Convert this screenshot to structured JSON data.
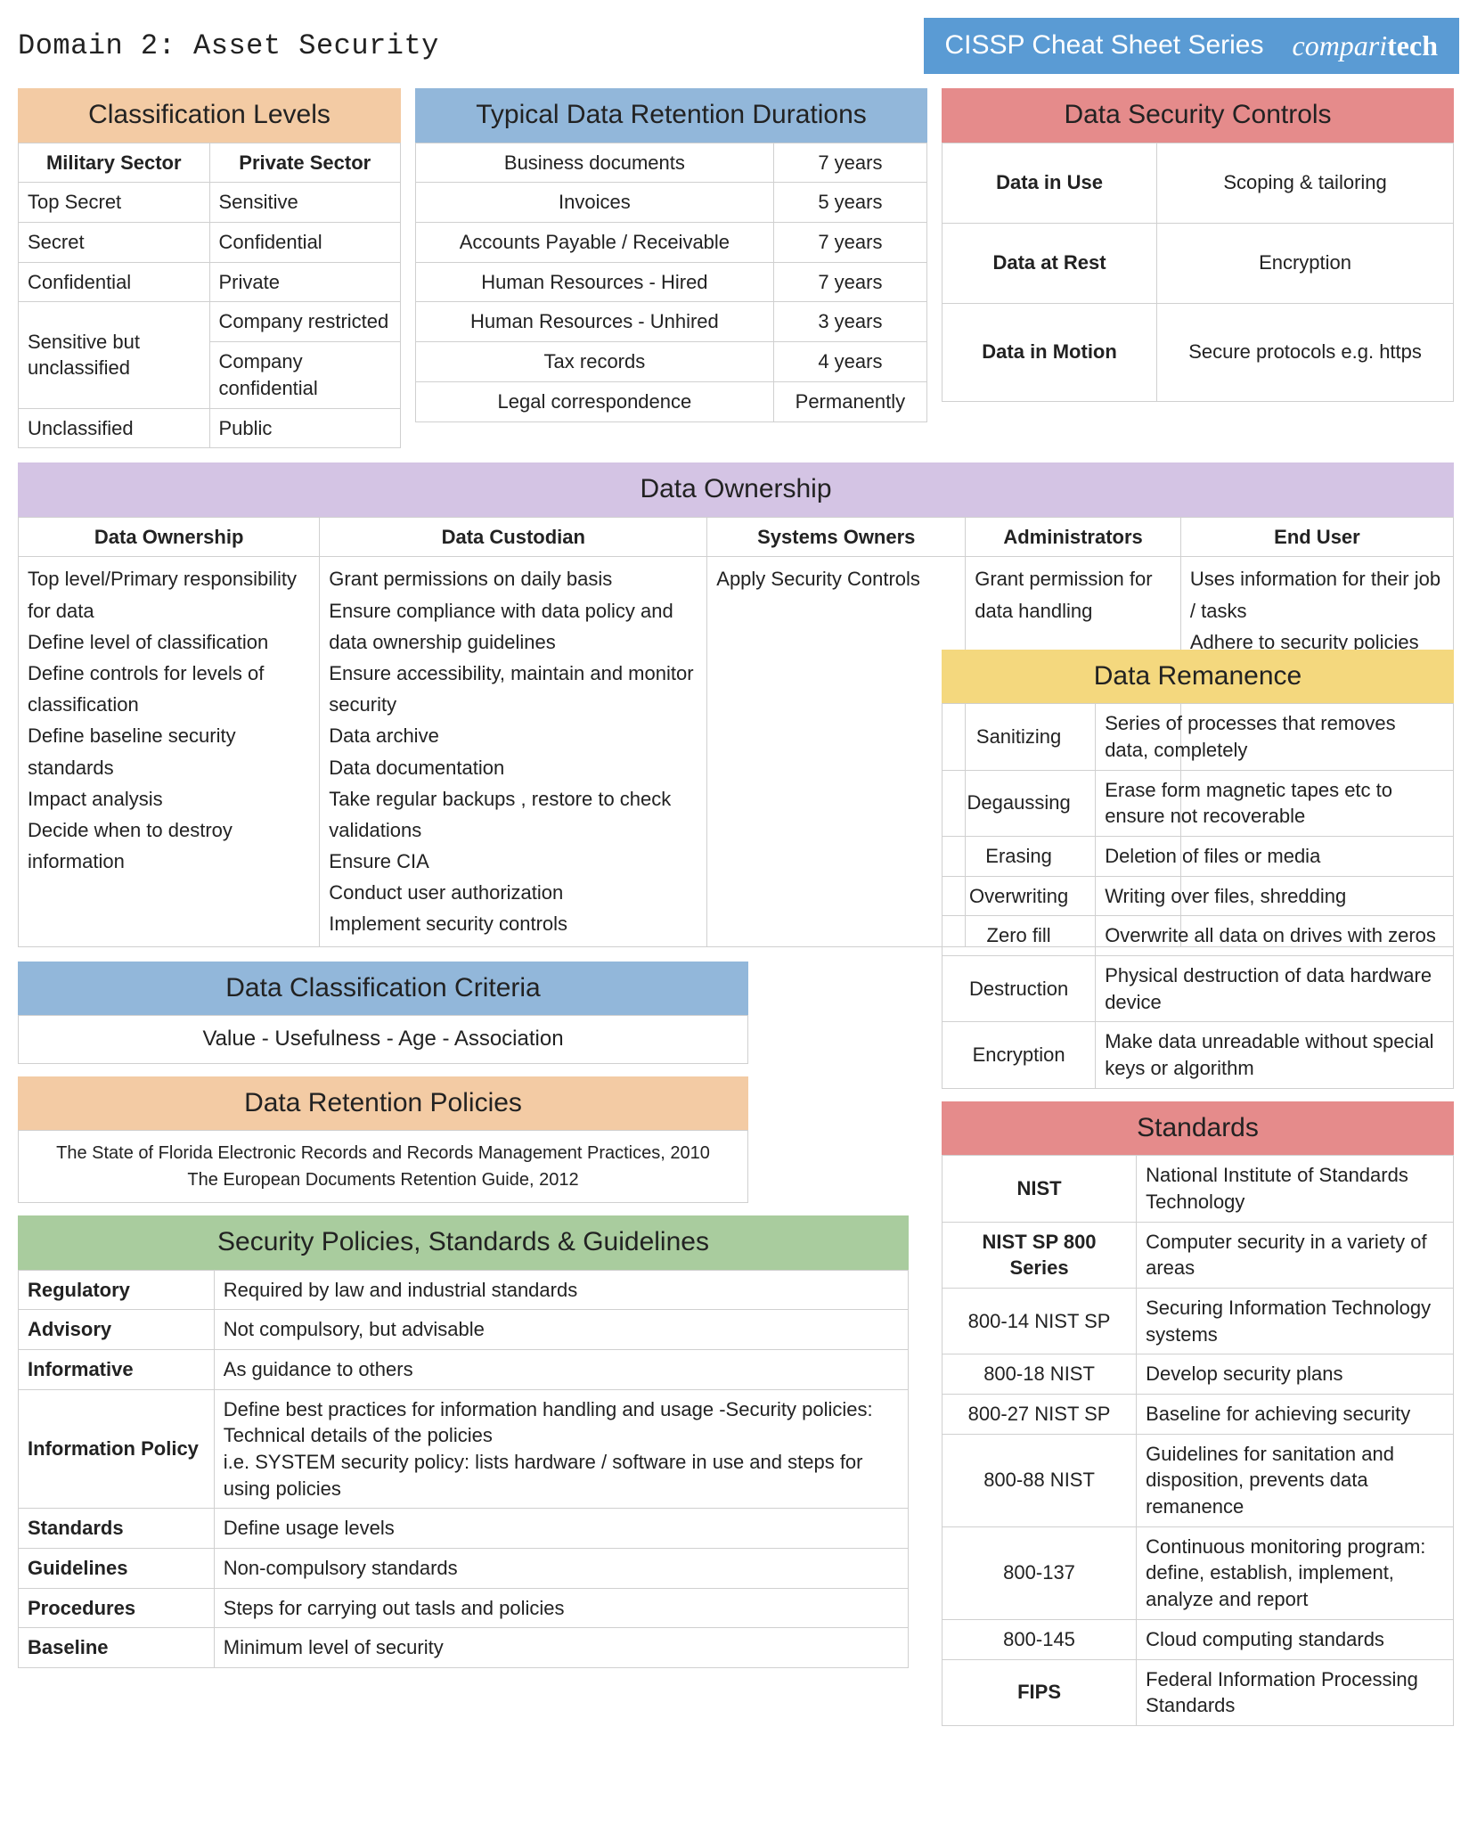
{
  "colors": {
    "header_blue": "#5a9bd4",
    "peach": "#f3cba4",
    "blue": "#92b7da",
    "red": "#e58b8b",
    "purple": "#d4c4e4",
    "yellow": "#f4d87e",
    "green": "#a9cc9e",
    "border": "#d0d0d0",
    "text": "#222222",
    "white": "#ffffff"
  },
  "page": {
    "domain_title": "Domain 2: Asset Security",
    "series_label": "CISSP Cheat Sheet Series",
    "brand_prefix": "compari",
    "brand_suffix": "tech"
  },
  "classification_levels": {
    "title": "Classification Levels",
    "col1": "Military Sector",
    "col2": "Private Sector",
    "rows": [
      {
        "a": "Top Secret",
        "b": "Sensitive"
      },
      {
        "a": "Secret",
        "b": "Confidential"
      },
      {
        "a": "Confidential",
        "b": "Private"
      },
      {
        "a": "Sensitive but unclassified",
        "b": "Company restricted",
        "b2": "Company confidential"
      },
      {
        "a": "Unclassified",
        "b": "Public"
      }
    ]
  },
  "retention_durations": {
    "title": "Typical Data Retention Durations",
    "rows": [
      {
        "a": "Business documents",
        "b": "7 years"
      },
      {
        "a": "Invoices",
        "b": "5 years"
      },
      {
        "a": "Accounts Payable / Receivable",
        "b": "7 years"
      },
      {
        "a": "Human Resources - Hired",
        "b": "7 years"
      },
      {
        "a": "Human Resources - Unhired",
        "b": "3 years"
      },
      {
        "a": "Tax records",
        "b": "4 years"
      },
      {
        "a": "Legal correspondence",
        "b": "Permanently"
      }
    ]
  },
  "security_controls": {
    "title": "Data Security Controls",
    "rows": [
      {
        "a": "Data in Use",
        "b": "Scoping & tailoring"
      },
      {
        "a": "Data at Rest",
        "b": "Encryption"
      },
      {
        "a": "Data in Motion",
        "b": "Secure protocols e.g. https"
      }
    ]
  },
  "ownership": {
    "title": "Data Ownership",
    "headers": [
      "Data Ownership",
      "Data Custodian",
      "Systems Owners",
      "Administrators",
      "End User"
    ],
    "cells": [
      "Top level/Primary responsibility for data\nDefine  level of classification\nDefine controls for levels of classification\nDefine baseline security standards\nImpact analysis\nDecide  when to destroy information",
      "Grant permissions on daily basis\nEnsure compliance with  data policy and data ownership guidelines\nEnsure accessibility, maintain and monitor security\nData archive\nData documentation\nTake regular backups , restore to check validations\nEnsure CIA\nConduct  user authorization\nImplement security controls",
      "Apply Security Controls",
      "Grant permission for data handling",
      "Uses information for their job / tasks\nAdhere to security policies and guidelines"
    ]
  },
  "criteria": {
    "title": "Data Classification Criteria",
    "body": "Value - Usefulness - Age - Association"
  },
  "retention_policies": {
    "title": "Data Retention Policies",
    "body": "The State of Florida Electronic Records and Records Management Practices, 2010\nThe European Documents Retention Guide, 2012"
  },
  "policies_guidelines": {
    "title": "Security Policies, Standards & Guidelines",
    "rows": [
      {
        "a": "Regulatory",
        "b": "Required by law and industrial standards"
      },
      {
        "a": "Advisory",
        "b": "Not compulsory, but advisable"
      },
      {
        "a": "Informative",
        "b": "As guidance to others"
      },
      {
        "a": "Information Policy",
        "b": "Define best practices for information handling and usage -Security policies: Technical details of the policies\ni.e. SYSTEM security policy: lists hardware / software in use and steps for using policies"
      },
      {
        "a": "Standards",
        "b": "Define usage levels"
      },
      {
        "a": "Guidelines",
        "b": "Non-compulsory standards"
      },
      {
        "a": "Procedures",
        "b": "Steps for carrying out tasls and policies"
      },
      {
        "a": "Baseline",
        "b": "Minimum level of security"
      }
    ]
  },
  "remanence": {
    "title": "Data Remanence",
    "rows": [
      {
        "a": "Sanitizing",
        "b": "Series of processes that removes data, completely"
      },
      {
        "a": "Degaussing",
        "b": "Erase form magnetic tapes etc to ensure not recoverable"
      },
      {
        "a": "Erasing",
        "b": "Deletion of files or media"
      },
      {
        "a": "Overwriting",
        "b": "Writing over files, shredding"
      },
      {
        "a": "Zero fill",
        "b": "Overwrite all data on drives with zeros"
      },
      {
        "a": "Destruction",
        "b": "Physical destruction of data hardware device"
      },
      {
        "a": "Encryption",
        "b": "Make data unreadable without special keys or algorithm"
      }
    ]
  },
  "standards": {
    "title": "Standards",
    "rows": [
      {
        "a": "NIST",
        "b": "National Institute of Standards Technology",
        "bold": true
      },
      {
        "a": "NIST SP 800 Series",
        "b": "Computer security in a variety of areas",
        "bold": true
      },
      {
        "a": "800-14 NIST SP",
        "b": "Securing Information Technology systems"
      },
      {
        "a": "800-18 NIST",
        "b": "Develop security plans"
      },
      {
        "a": "800-27 NIST SP",
        "b": "Baseline for achieving security"
      },
      {
        "a": "800-88 NIST",
        "b": "Guidelines for sanitation and disposition, prevents data remanence"
      },
      {
        "a": "800-137",
        "b": "Continuous monitoring program: define, establish, implement, analyze and report"
      },
      {
        "a": "800-145",
        "b": "Cloud computing standards"
      },
      {
        "a": "FIPS",
        "b": "Federal Information Processing Standards",
        "bold": true
      }
    ]
  }
}
